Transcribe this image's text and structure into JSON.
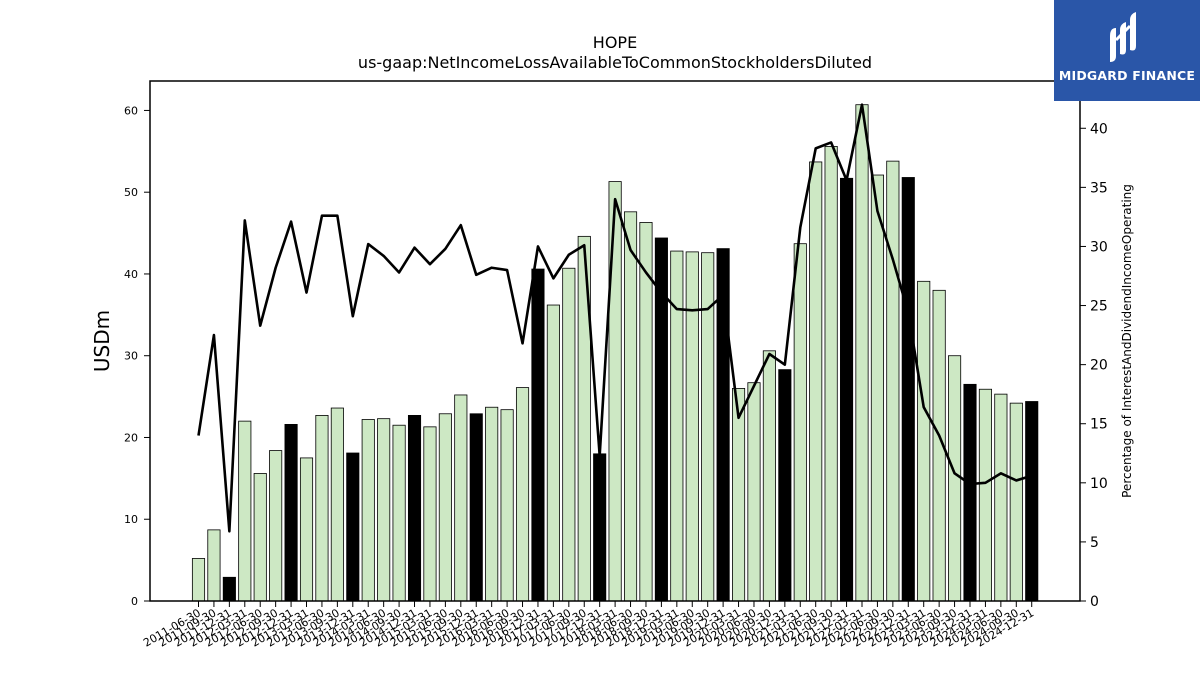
{
  "chart_data": {
    "type": "bar",
    "title": "HOPE",
    "subtitle": "us-gaap:NetIncomeLossAvailableToCommonStockholdersDiluted",
    "ylabel": "USDm",
    "y2label": "Percentage of InterestAndDividendIncomeOperating",
    "ylim": [
      0,
      63.6
    ],
    "y2lim": [
      0,
      44
    ],
    "yticks": [
      0,
      10,
      20,
      30,
      40,
      50,
      60
    ],
    "y2ticks": [
      0,
      5,
      10,
      15,
      20,
      25,
      30,
      35,
      40
    ],
    "grid": false,
    "colors": {
      "bar": "#cde8c4",
      "bar_q4": "#000000",
      "line": "#000000"
    },
    "categories": [
      "2011-06-30",
      "2011-09-30",
      "2011-12-31",
      "2012-03-31",
      "2012-06-30",
      "2012-09-30",
      "2012-12-31",
      "2013-03-31",
      "2013-06-30",
      "2013-09-30",
      "2013-12-31",
      "2014-03-31",
      "2014-06-30",
      "2014-09-30",
      "2014-12-31",
      "2015-03-31",
      "2015-06-30",
      "2015-09-30",
      "2015-12-31",
      "2016-03-31",
      "2016-06-30",
      "2016-09-30",
      "2016-12-31",
      "2017-03-31",
      "2017-06-30",
      "2017-09-30",
      "2017-12-31",
      "2018-03-31",
      "2018-06-30",
      "2018-09-30",
      "2018-12-31",
      "2019-03-31",
      "2019-06-30",
      "2019-09-30",
      "2019-12-31",
      "2020-03-31",
      "2020-06-30",
      "2020-09-30",
      "2020-12-31",
      "2021-03-31",
      "2021-06-30",
      "2021-09-30",
      "2021-12-31",
      "2022-03-31",
      "2022-06-30",
      "2022-09-30",
      "2022-12-31",
      "2023-03-31",
      "2023-06-30",
      "2023-09-30",
      "2023-12-31",
      "2024-03-31",
      "2024-06-30",
      "2024-09-30",
      "2024-12-31"
    ],
    "series": [
      {
        "values": [
          5.2,
          8.7,
          2.9,
          22.0,
          15.6,
          18.4,
          21.6,
          17.5,
          22.7,
          23.6,
          18.1,
          22.2,
          22.3,
          21.5,
          22.7,
          21.3,
          22.9,
          25.2,
          22.9,
          23.7,
          23.4,
          26.1,
          40.6,
          36.2,
          40.7,
          44.6,
          18.0,
          51.3,
          47.6,
          46.3,
          44.4,
          42.8,
          42.7,
          42.6,
          43.1,
          26.0,
          26.7,
          30.6,
          28.3,
          43.7,
          53.7,
          55.6,
          51.7,
          60.7,
          52.1,
          53.8,
          51.8,
          39.1,
          38.0,
          30.0,
          26.5,
          25.9,
          25.3,
          24.2,
          24.4
        ],
        "q4": [
          false,
          false,
          true,
          false,
          false,
          false,
          true,
          false,
          false,
          false,
          true,
          false,
          false,
          false,
          true,
          false,
          false,
          false,
          true,
          false,
          false,
          false,
          true,
          false,
          false,
          false,
          true,
          false,
          false,
          false,
          true,
          false,
          false,
          false,
          true,
          false,
          false,
          false,
          true,
          false,
          false,
          false,
          true,
          false,
          false,
          false,
          true,
          false,
          false,
          false,
          true,
          false,
          false,
          false,
          true
        ]
      },
      {
        "axis": "right",
        "values": [
          14.0,
          22.5,
          5.9,
          32.2,
          23.3,
          28.2,
          32.1,
          26.1,
          32.6,
          32.6,
          24.1,
          30.2,
          29.2,
          27.8,
          29.9,
          28.5,
          29.8,
          31.8,
          27.6,
          28.2,
          28.0,
          21.8,
          30.0,
          27.3,
          29.3,
          30.1,
          12.3,
          34.0,
          29.7,
          27.8,
          26.1,
          24.7,
          24.6,
          24.7,
          25.9,
          15.5,
          18.2,
          20.9,
          20.0,
          31.6,
          38.3,
          38.8,
          35.6,
          42.0,
          33.0,
          28.9,
          24.4,
          16.4,
          14.0,
          10.8,
          9.9,
          10.0,
          10.8,
          10.2,
          10.6
        ]
      }
    ]
  },
  "logo": {
    "brand_text": "MIDGARD FINANCE"
  }
}
